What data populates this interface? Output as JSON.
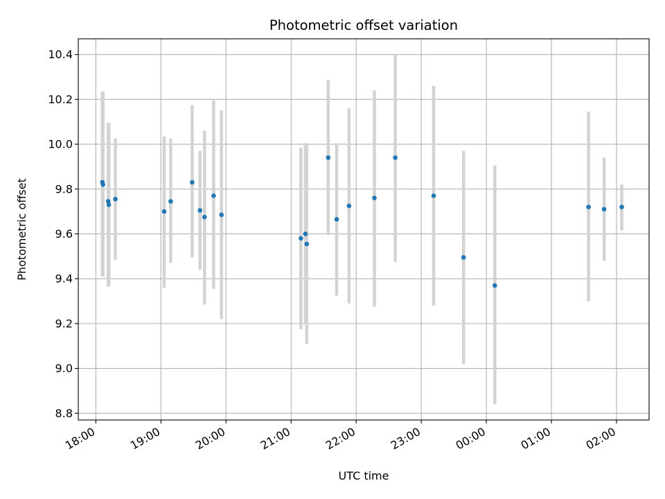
{
  "chart_data": {
    "type": "scatter",
    "title": "Photometric offset variation",
    "xlabel": "UTC time",
    "ylabel": "Photometric offset",
    "x_unit": "hours (UTC), continuing past midnight",
    "xlim": [
      17.73,
      26.5
    ],
    "ylim": [
      8.77,
      10.47
    ],
    "grid": true,
    "colors": {
      "marker": "#1f77b4",
      "errorbar": "#d3d3d3",
      "grid": "#b0b0b0"
    },
    "x_ticks": [
      {
        "value": 18,
        "label": "18:00"
      },
      {
        "value": 19,
        "label": "19:00"
      },
      {
        "value": 20,
        "label": "20:00"
      },
      {
        "value": 21,
        "label": "21:00"
      },
      {
        "value": 22,
        "label": "22:00"
      },
      {
        "value": 23,
        "label": "23:00"
      },
      {
        "value": 24,
        "label": "00:00"
      },
      {
        "value": 25,
        "label": "01:00"
      },
      {
        "value": 26,
        "label": "02:00"
      }
    ],
    "y_ticks": [
      {
        "value": 8.8,
        "label": "8.8"
      },
      {
        "value": 9.0,
        "label": "9.0"
      },
      {
        "value": 9.2,
        "label": "9.2"
      },
      {
        "value": 9.4,
        "label": "9.4"
      },
      {
        "value": 9.6,
        "label": "9.6"
      },
      {
        "value": 9.8,
        "label": "9.8"
      },
      {
        "value": 10.0,
        "label": "10.0"
      },
      {
        "value": 10.2,
        "label": "10.2"
      },
      {
        "value": 10.4,
        "label": "10.4"
      }
    ],
    "points": [
      {
        "x": 18.1,
        "y": 9.83,
        "lo": 9.41,
        "hi": 10.235
      },
      {
        "x": 18.11,
        "y": 9.82,
        "lo": 9.41,
        "hi": 10.235
      },
      {
        "x": 18.19,
        "y": 9.745,
        "lo": 9.365,
        "hi": 10.095
      },
      {
        "x": 18.2,
        "y": 9.73,
        "lo": 9.365,
        "hi": 10.095
      },
      {
        "x": 18.3,
        "y": 9.755,
        "lo": 9.485,
        "hi": 10.025
      },
      {
        "x": 19.05,
        "y": 9.7,
        "lo": 9.36,
        "hi": 10.035
      },
      {
        "x": 19.15,
        "y": 9.745,
        "lo": 9.47,
        "hi": 10.025
      },
      {
        "x": 19.48,
        "y": 9.83,
        "lo": 9.495,
        "hi": 10.175
      },
      {
        "x": 19.6,
        "y": 9.705,
        "lo": 9.44,
        "hi": 9.97
      },
      {
        "x": 19.67,
        "y": 9.675,
        "lo": 9.285,
        "hi": 10.06
      },
      {
        "x": 19.81,
        "y": 9.77,
        "lo": 9.355,
        "hi": 10.195
      },
      {
        "x": 19.93,
        "y": 9.685,
        "lo": 9.22,
        "hi": 10.15
      },
      {
        "x": 21.15,
        "y": 9.58,
        "lo": 9.175,
        "hi": 9.985
      },
      {
        "x": 21.22,
        "y": 9.6,
        "lo": 9.195,
        "hi": 10.005
      },
      {
        "x": 21.24,
        "y": 9.555,
        "lo": 9.11,
        "hi": 10.005
      },
      {
        "x": 21.57,
        "y": 9.94,
        "lo": 9.595,
        "hi": 10.285
      },
      {
        "x": 21.7,
        "y": 9.665,
        "lo": 9.325,
        "hi": 10.005
      },
      {
        "x": 21.89,
        "y": 9.725,
        "lo": 9.29,
        "hi": 10.16
      },
      {
        "x": 22.28,
        "y": 9.76,
        "lo": 9.275,
        "hi": 10.24
      },
      {
        "x": 22.6,
        "y": 9.94,
        "lo": 9.475,
        "hi": 10.4
      },
      {
        "x": 23.19,
        "y": 9.77,
        "lo": 9.28,
        "hi": 10.26
      },
      {
        "x": 23.65,
        "y": 9.495,
        "lo": 9.02,
        "hi": 9.97
      },
      {
        "x": 24.13,
        "y": 9.37,
        "lo": 8.84,
        "hi": 9.905
      },
      {
        "x": 25.57,
        "y": 9.72,
        "lo": 9.3,
        "hi": 10.145
      },
      {
        "x": 25.81,
        "y": 9.71,
        "lo": 9.48,
        "hi": 9.94
      },
      {
        "x": 26.08,
        "y": 9.72,
        "lo": 9.615,
        "hi": 9.82
      }
    ]
  }
}
